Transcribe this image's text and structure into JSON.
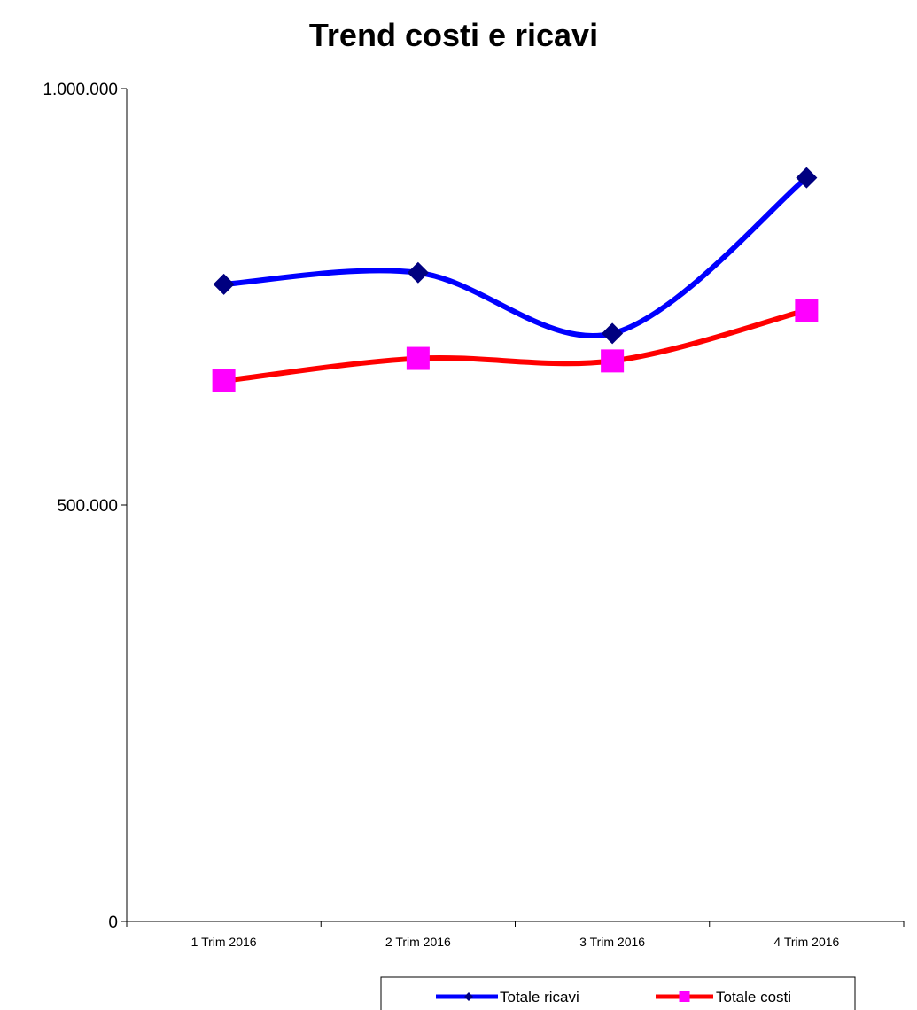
{
  "chart_data": {
    "type": "line",
    "title": "Trend costi e ricavi",
    "xlabel": "",
    "ylabel": "",
    "categories": [
      "1 Trim 2016",
      "2 Trim 2016",
      "3 Trim 2016",
      "4 Trim 2016"
    ],
    "ylim": [
      0,
      1000000
    ],
    "yticks": [
      {
        "value": 0,
        "label": "0"
      },
      {
        "value": 500000,
        "label": "500.000"
      },
      {
        "value": 1000000,
        "label": "1.000.000"
      }
    ],
    "grid": false,
    "legend_position": "bottom",
    "series": [
      {
        "name": "Totale ricavi",
        "values": [
          765000,
          779000,
          706000,
          893000
        ],
        "color": "#0000FF",
        "marker": "diamond",
        "marker_color": "#000080"
      },
      {
        "name": "Totale costi",
        "values": [
          649000,
          676000,
          673000,
          734000
        ],
        "color": "#FF0000",
        "marker": "square",
        "marker_color": "#FF00FF"
      }
    ]
  }
}
